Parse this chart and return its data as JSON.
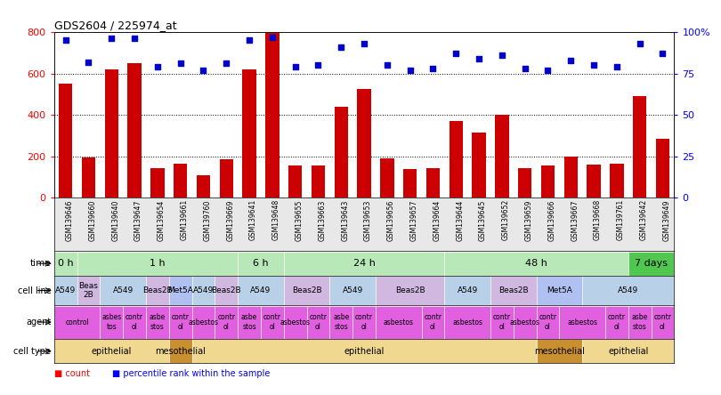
{
  "title": "GDS2604 / 225974_at",
  "samples": [
    "GSM139646",
    "GSM139660",
    "GSM139640",
    "GSM139647",
    "GSM139654",
    "GSM139661",
    "GSM139760",
    "GSM139669",
    "GSM139641",
    "GSM139648",
    "GSM139655",
    "GSM139663",
    "GSM139643",
    "GSM139653",
    "GSM139656",
    "GSM139657",
    "GSM139664",
    "GSM139644",
    "GSM139645",
    "GSM139652",
    "GSM139659",
    "GSM139666",
    "GSM139667",
    "GSM139668",
    "GSM139761",
    "GSM139642",
    "GSM139649"
  ],
  "counts": [
    550,
    195,
    620,
    650,
    145,
    165,
    110,
    185,
    620,
    795,
    155,
    155,
    440,
    525,
    190,
    140,
    145,
    370,
    315,
    400,
    145,
    155,
    200,
    160,
    165,
    490,
    285
  ],
  "percentiles": [
    95,
    82,
    96,
    96,
    79,
    81,
    77,
    81,
    95,
    97,
    79,
    80,
    91,
    93,
    80,
    77,
    78,
    87,
    84,
    86,
    78,
    77,
    83,
    80,
    79,
    93,
    87
  ],
  "time_data": [
    {
      "label": "0 h",
      "start": 0,
      "end": 1,
      "color": "#b8e8b8"
    },
    {
      "label": "1 h",
      "start": 1,
      "end": 8,
      "color": "#b8e8b8"
    },
    {
      "label": "6 h",
      "start": 8,
      "end": 10,
      "color": "#b8e8b8"
    },
    {
      "label": "24 h",
      "start": 10,
      "end": 17,
      "color": "#b8e8b8"
    },
    {
      "label": "48 h",
      "start": 17,
      "end": 25,
      "color": "#b8e8b8"
    },
    {
      "label": "7 days",
      "start": 25,
      "end": 27,
      "color": "#50c850"
    }
  ],
  "cell_line_data": [
    {
      "label": "A549",
      "start": 0,
      "end": 1,
      "color": "#b8d0e8"
    },
    {
      "label": "Beas\n2B",
      "start": 1,
      "end": 2,
      "color": "#d0b8e0"
    },
    {
      "label": "A549",
      "start": 2,
      "end": 4,
      "color": "#b8d0e8"
    },
    {
      "label": "Beas2B",
      "start": 4,
      "end": 5,
      "color": "#d0b8e0"
    },
    {
      "label": "Met5A",
      "start": 5,
      "end": 6,
      "color": "#b0c0f0"
    },
    {
      "label": "A549",
      "start": 6,
      "end": 7,
      "color": "#b8d0e8"
    },
    {
      "label": "Beas2B",
      "start": 7,
      "end": 8,
      "color": "#d0b8e0"
    },
    {
      "label": "A549",
      "start": 8,
      "end": 10,
      "color": "#b8d0e8"
    },
    {
      "label": "Beas2B",
      "start": 10,
      "end": 12,
      "color": "#d0b8e0"
    },
    {
      "label": "A549",
      "start": 12,
      "end": 14,
      "color": "#b8d0e8"
    },
    {
      "label": "Beas2B",
      "start": 14,
      "end": 17,
      "color": "#d0b8e0"
    },
    {
      "label": "A549",
      "start": 17,
      "end": 19,
      "color": "#b8d0e8"
    },
    {
      "label": "Beas2B",
      "start": 19,
      "end": 21,
      "color": "#d0b8e0"
    },
    {
      "label": "Met5A",
      "start": 21,
      "end": 23,
      "color": "#b0c0f0"
    },
    {
      "label": "A549",
      "start": 23,
      "end": 27,
      "color": "#b8d0e8"
    }
  ],
  "agent_data": [
    {
      "label": "control",
      "start": 0,
      "end": 2,
      "color": "#e060e0"
    },
    {
      "label": "asbes\ntos",
      "start": 2,
      "end": 3,
      "color": "#e060e0"
    },
    {
      "label": "contr\nol",
      "start": 3,
      "end": 4,
      "color": "#e060e0"
    },
    {
      "label": "asbe\nstos",
      "start": 4,
      "end": 5,
      "color": "#e060e0"
    },
    {
      "label": "contr\nol",
      "start": 5,
      "end": 6,
      "color": "#e060e0"
    },
    {
      "label": "asbestos",
      "start": 6,
      "end": 7,
      "color": "#e060e0"
    },
    {
      "label": "contr\nol",
      "start": 7,
      "end": 8,
      "color": "#e060e0"
    },
    {
      "label": "asbe\nstos",
      "start": 8,
      "end": 9,
      "color": "#e060e0"
    },
    {
      "label": "contr\nol",
      "start": 9,
      "end": 10,
      "color": "#e060e0"
    },
    {
      "label": "asbestos",
      "start": 10,
      "end": 11,
      "color": "#e060e0"
    },
    {
      "label": "contr\nol",
      "start": 11,
      "end": 12,
      "color": "#e060e0"
    },
    {
      "label": "asbe\nstos",
      "start": 12,
      "end": 13,
      "color": "#e060e0"
    },
    {
      "label": "contr\nol",
      "start": 13,
      "end": 14,
      "color": "#e060e0"
    },
    {
      "label": "asbestos",
      "start": 14,
      "end": 16,
      "color": "#e060e0"
    },
    {
      "label": "contr\nol",
      "start": 16,
      "end": 17,
      "color": "#e060e0"
    },
    {
      "label": "asbestos",
      "start": 17,
      "end": 19,
      "color": "#e060e0"
    },
    {
      "label": "contr\nol",
      "start": 19,
      "end": 20,
      "color": "#e060e0"
    },
    {
      "label": "asbestos",
      "start": 20,
      "end": 21,
      "color": "#e060e0"
    },
    {
      "label": "contr\nol",
      "start": 21,
      "end": 22,
      "color": "#e060e0"
    },
    {
      "label": "asbestos",
      "start": 22,
      "end": 24,
      "color": "#e060e0"
    },
    {
      "label": "contr\nol",
      "start": 24,
      "end": 25,
      "color": "#e060e0"
    },
    {
      "label": "asbe\nstos",
      "start": 25,
      "end": 26,
      "color": "#e060e0"
    },
    {
      "label": "contr\nol",
      "start": 26,
      "end": 27,
      "color": "#e060e0"
    }
  ],
  "cell_type_data": [
    {
      "label": "epithelial",
      "start": 0,
      "end": 5,
      "color": "#f0d890"
    },
    {
      "label": "mesothelial",
      "start": 5,
      "end": 6,
      "color": "#c89030"
    },
    {
      "label": "epithelial",
      "start": 6,
      "end": 21,
      "color": "#f0d890"
    },
    {
      "label": "mesothelial",
      "start": 21,
      "end": 23,
      "color": "#c89030"
    },
    {
      "label": "epithelial",
      "start": 23,
      "end": 27,
      "color": "#f0d890"
    }
  ],
  "bar_color": "#cc0000",
  "dot_color": "#0000cc",
  "background_color": "#ffffff",
  "ylim_left": [
    0,
    800
  ],
  "ylim_right": [
    0,
    100
  ],
  "yticks_left": [
    0,
    200,
    400,
    600,
    800
  ],
  "yticks_right": [
    0,
    25,
    50,
    75,
    100
  ]
}
